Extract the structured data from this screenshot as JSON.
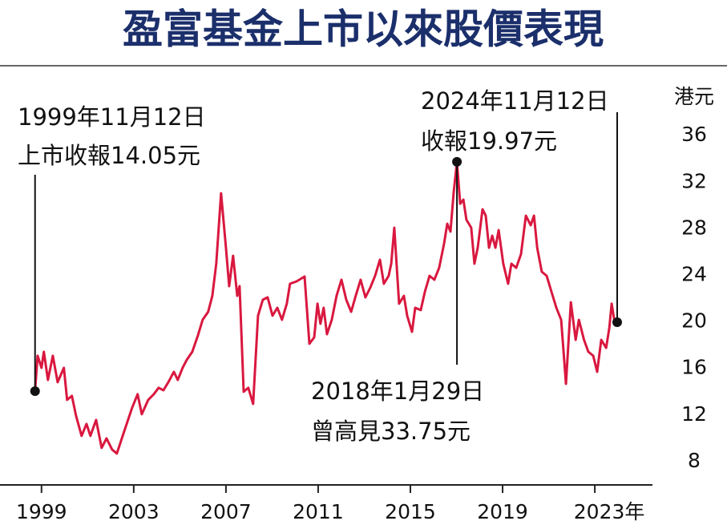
{
  "chart_data": {
    "type": "line",
    "title": "盈富基金上市以來股價表現",
    "y_unit": "港元",
    "x": [
      1998.72,
      1998.83,
      1999.0,
      1999.1,
      1999.28,
      1999.49,
      1999.7,
      1999.97,
      2000.11,
      2000.32,
      2000.5,
      2000.74,
      2000.95,
      2001.12,
      2001.37,
      2001.61,
      2001.82,
      2002.06,
      2002.27,
      2002.58,
      2002.93,
      2003.17,
      2003.35,
      2003.63,
      2003.87,
      2004.08,
      2004.29,
      2004.5,
      2004.74,
      2004.91,
      2005.12,
      2005.3,
      2005.54,
      2005.78,
      2005.99,
      2006.23,
      2006.41,
      2006.58,
      2006.79,
      2007.0,
      2007.14,
      2007.31,
      2007.49,
      2007.59,
      2007.77,
      2007.97,
      2008.18,
      2008.39,
      2008.6,
      2008.81,
      2009.02,
      2009.23,
      2009.43,
      2009.64,
      2009.78,
      2010.06,
      2010.41,
      2010.62,
      2010.83,
      2010.97,
      2011.1,
      2011.24,
      2011.38,
      2011.59,
      2011.8,
      2012.01,
      2012.22,
      2012.43,
      2012.63,
      2012.84,
      2013.05,
      2013.26,
      2013.47,
      2013.68,
      2013.85,
      2014.06,
      2014.17,
      2014.3,
      2014.51,
      2014.72,
      2014.86,
      2015.07,
      2015.21,
      2015.45,
      2015.63,
      2015.83,
      2016.04,
      2016.25,
      2016.46,
      2016.6,
      2016.74,
      2016.88,
      2017.02,
      2017.16,
      2017.3,
      2017.43,
      2017.64,
      2017.78,
      2017.92,
      2018.13,
      2018.27,
      2018.41,
      2018.55,
      2018.69,
      2018.83,
      2019.03,
      2019.24,
      2019.38,
      2019.59,
      2019.8,
      2020.01,
      2020.22,
      2020.36,
      2020.5,
      2020.7,
      2020.91,
      2021.12,
      2021.33,
      2021.54,
      2021.75,
      2021.96,
      2022.17,
      2022.31,
      2022.53,
      2022.72,
      2022.93,
      2023.1,
      2023.28,
      2023.49,
      2023.63,
      2023.73,
      2023.84,
      2023.97
    ],
    "series": [
      {
        "color": "#d9183f",
        "values": [
          14.05,
          17.09,
          16.06,
          17.43,
          15.02,
          17.09,
          14.82,
          16.06,
          13.3,
          13.65,
          11.93,
          10.21,
          11.24,
          10.21,
          11.58,
          9.18,
          10.0,
          9.04,
          8.7,
          10.55,
          12.62,
          13.79,
          12.07,
          13.3,
          13.79,
          14.34,
          14.13,
          14.82,
          15.71,
          15.02,
          16.06,
          16.74,
          17.43,
          18.81,
          20.18,
          20.87,
          22.24,
          25.0,
          31.05,
          26.37,
          23.07,
          25.68,
          22.24,
          23.07,
          14.0,
          14.34,
          12.96,
          20.53,
          21.9,
          22.11,
          20.53,
          21.21,
          20.18,
          21.56,
          23.28,
          23.48,
          23.9,
          18.12,
          18.67,
          21.56,
          19.84,
          21.21,
          18.94,
          20.18,
          22.24,
          23.62,
          21.9,
          20.87,
          22.24,
          23.62,
          22.11,
          22.93,
          23.96,
          25.34,
          23.28,
          23.96,
          25.0,
          28.09,
          21.56,
          22.24,
          20.53,
          19.15,
          21.21,
          21.01,
          22.59,
          23.96,
          23.62,
          24.65,
          26.72,
          28.43,
          27.75,
          31.19,
          33.75,
          30.15,
          30.5,
          28.78,
          28.09,
          25.0,
          26.37,
          29.67,
          29.12,
          26.37,
          27.4,
          26.37,
          27.88,
          25.0,
          23.28,
          25.0,
          24.65,
          25.82,
          29.12,
          28.3,
          29.12,
          26.37,
          24.31,
          23.96,
          22.59,
          21.21,
          20.18,
          14.68,
          21.69,
          18.46,
          20.18,
          18.46,
          17.43,
          17.09,
          15.71,
          18.46,
          17.77,
          19.49,
          21.56,
          20.18,
          19.97
        ]
      }
    ],
    "xlim": [
      1997.2,
      2025.5
    ],
    "xticks": [
      1999,
      2003,
      2007,
      2011,
      2015,
      2019,
      {
        "value": 2023,
        "label": "2023年"
      }
    ],
    "ylim": [
      6,
      42
    ],
    "yticks": [
      8,
      12,
      16,
      20,
      24,
      28,
      32,
      36
    ],
    "annotations": [
      {
        "lines": [
          "1999年11月12日",
          "上市收報14.05元"
        ]
      },
      {
        "lines": [
          "2018年1月29日",
          "曾高見33.75元"
        ]
      },
      {
        "lines": [
          "2024年11月12日",
          "收報19.97元"
        ]
      }
    ]
  }
}
